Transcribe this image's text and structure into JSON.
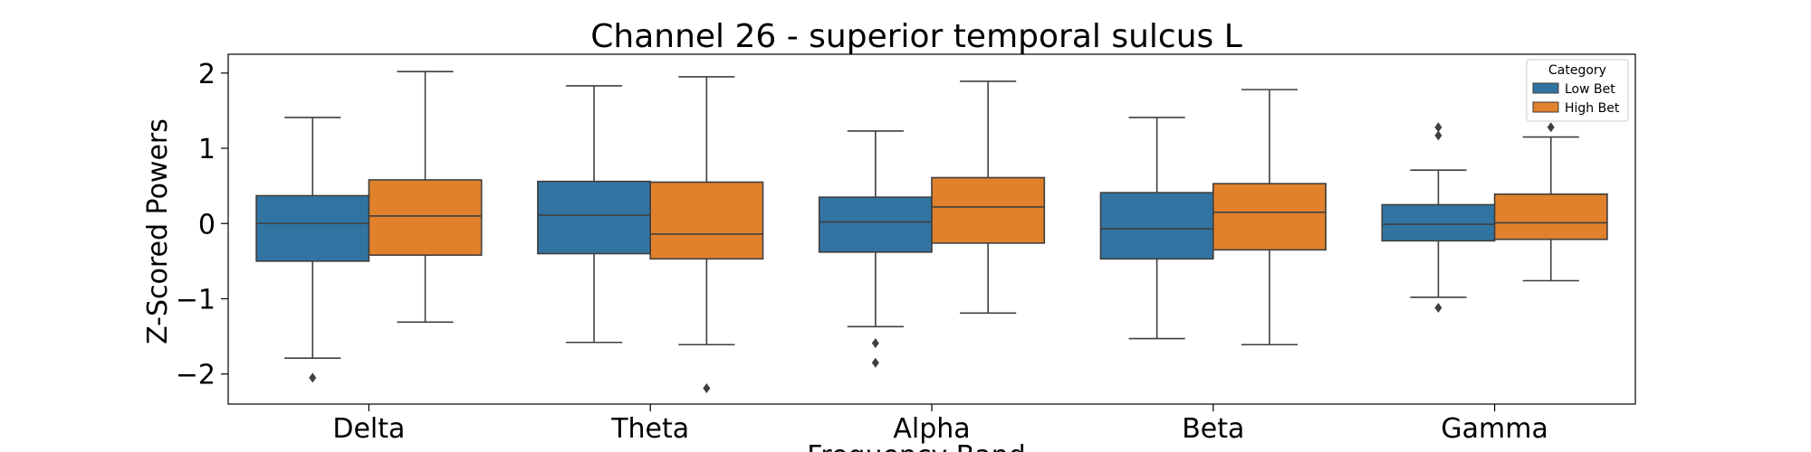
{
  "chart_data": {
    "type": "boxplot",
    "title": "Channel 26 - superior temporal sulcus L",
    "xlabel": "Frequency Band",
    "ylabel": "Z-Scored Powers",
    "ylim": [
      -2.4,
      2.25
    ],
    "yticks": [
      2,
      1,
      0,
      -1,
      -2
    ],
    "ytick_labels": [
      "2",
      "1",
      "0",
      "−1",
      "−2"
    ],
    "categories": [
      "Delta",
      "Theta",
      "Alpha",
      "Beta",
      "Gamma"
    ],
    "grid": false,
    "legend": {
      "title": "Category",
      "position": "top-right"
    },
    "series": [
      {
        "name": "Low Bet",
        "color": "#3274a1",
        "boxes": [
          {
            "whisker_low": -1.79,
            "q1": -0.5,
            "median": 0.0,
            "q3": 0.37,
            "whisker_high": 1.41,
            "outliers": [
              -2.05
            ]
          },
          {
            "whisker_low": -1.58,
            "q1": -0.4,
            "median": 0.11,
            "q3": 0.56,
            "whisker_high": 1.83,
            "outliers": []
          },
          {
            "whisker_low": -1.37,
            "q1": -0.38,
            "median": 0.02,
            "q3": 0.35,
            "whisker_high": 1.23,
            "outliers": [
              -1.59,
              -1.85
            ]
          },
          {
            "whisker_low": -1.53,
            "q1": -0.47,
            "median": -0.07,
            "q3": 0.41,
            "whisker_high": 1.41,
            "outliers": []
          },
          {
            "whisker_low": -0.98,
            "q1": -0.23,
            "median": -0.01,
            "q3": 0.25,
            "whisker_high": 0.71,
            "outliers": [
              1.28,
              1.17,
              -1.12
            ]
          }
        ]
      },
      {
        "name": "High Bet",
        "color": "#e1812c",
        "boxes": [
          {
            "whisker_low": -1.31,
            "q1": -0.42,
            "median": 0.1,
            "q3": 0.58,
            "whisker_high": 2.02,
            "outliers": []
          },
          {
            "whisker_low": -1.61,
            "q1": -0.47,
            "median": -0.14,
            "q3": 0.55,
            "whisker_high": 1.95,
            "outliers": [
              -2.19
            ]
          },
          {
            "whisker_low": -1.19,
            "q1": -0.26,
            "median": 0.22,
            "q3": 0.61,
            "whisker_high": 1.89,
            "outliers": []
          },
          {
            "whisker_low": -1.61,
            "q1": -0.35,
            "median": 0.15,
            "q3": 0.53,
            "whisker_high": 1.78,
            "outliers": []
          },
          {
            "whisker_low": -0.76,
            "q1": -0.21,
            "median": 0.01,
            "q3": 0.39,
            "whisker_high": 1.15,
            "outliers": [
              1.28
            ]
          }
        ]
      }
    ]
  }
}
